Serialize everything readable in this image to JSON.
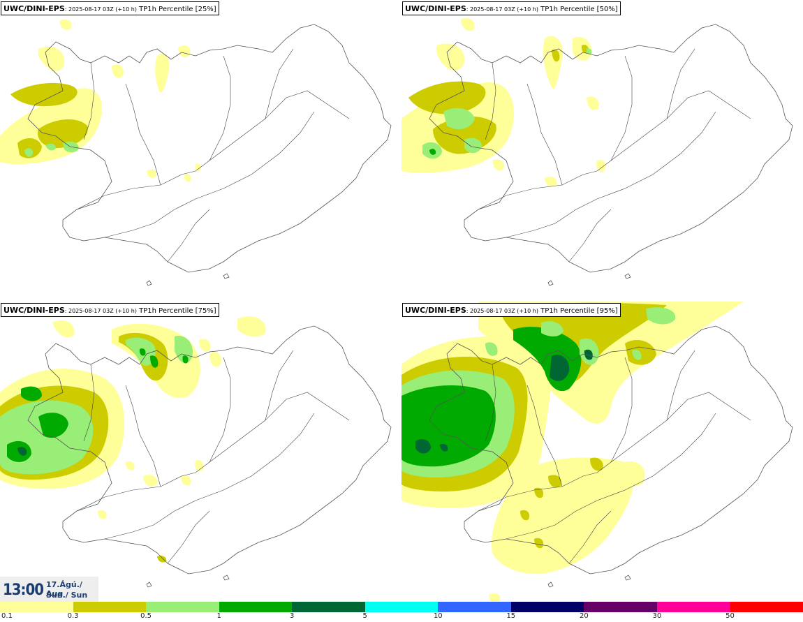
{
  "panels": [
    {
      "source": "UWC/DINI-EPS",
      "run": ": 2025-08-17 03Z (+10 h)",
      "variable": " TP1h Percentile [25%]"
    },
    {
      "source": "UWC/DINI-EPS",
      "run": ": 2025-08-17 03Z (+10 h)",
      "variable": " TP1h Percentile [50%]"
    },
    {
      "source": "UWC/DINI-EPS",
      "run": ": 2025-08-17 03Z (+10 h)",
      "variable": " TP1h Percentile [75%]"
    },
    {
      "source": "UWC/DINI-EPS",
      "run": ": 2025-08-17 03Z (+10 h)",
      "variable": " TP1h Percentile [95%]"
    }
  ],
  "valid_time": {
    "time": "13:00",
    "date": "17.Ágú./ Aug",
    "day": "Sun./ Sun"
  },
  "legend": {
    "ticks": [
      "0.1",
      "0.3",
      "0.5",
      "1",
      "3",
      "5",
      "10",
      "15",
      "20",
      "30",
      "50"
    ],
    "colors": [
      "#ffff99",
      "#cccc00",
      "#99ee77",
      "#00aa00",
      "#006633",
      "#00ffee",
      "#3366ff",
      "#000066",
      "#660066",
      "#ff0099",
      "#ff0000"
    ]
  }
}
